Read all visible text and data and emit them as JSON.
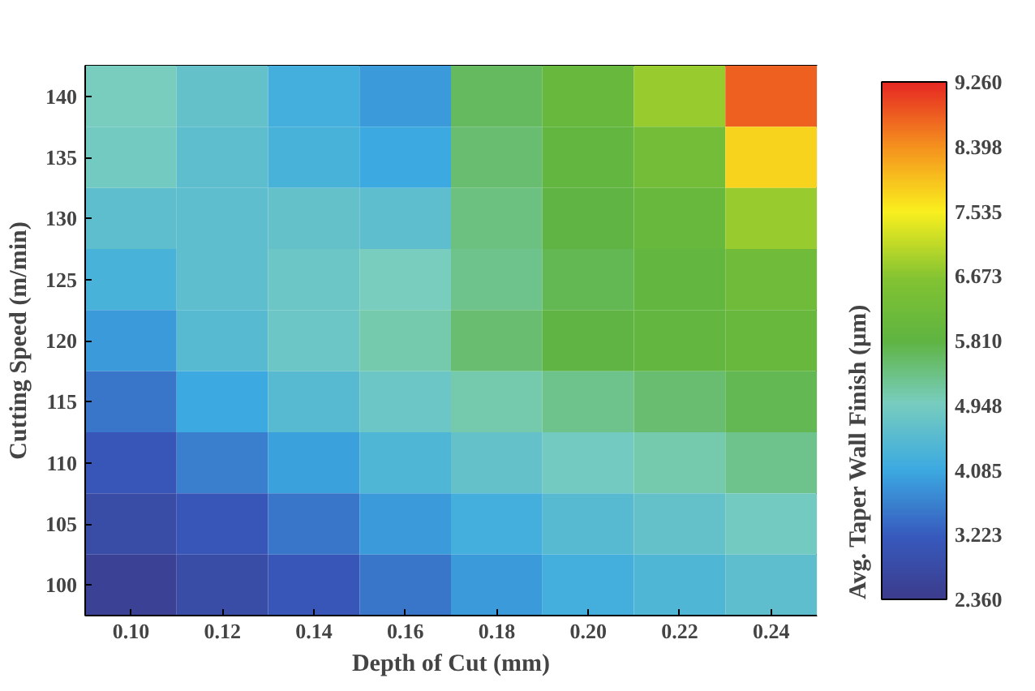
{
  "chart_data": {
    "type": "heatmap",
    "xlabel": "Depth of Cut (mm)",
    "ylabel": "Cutting Speed (m/min)",
    "clabel": "Avg. Taper Wall Finish (µm)",
    "categories": [
      "0.10",
      "0.12",
      "0.14",
      "0.16",
      "0.18",
      "0.20",
      "0.22",
      "0.24"
    ],
    "y_categories": [
      "140",
      "135",
      "130",
      "125",
      "120",
      "115",
      "110",
      "105",
      "100"
    ],
    "cells": [
      [
        5.0,
        4.7,
        4.2,
        3.9,
        5.6,
        6.0,
        6.8,
        8.8
      ],
      [
        4.9,
        4.6,
        4.3,
        4.1,
        5.5,
        5.9,
        6.3,
        7.8
      ],
      [
        4.6,
        4.6,
        4.7,
        4.6,
        5.4,
        5.8,
        6.0,
        6.8
      ],
      [
        4.3,
        4.6,
        4.8,
        5.0,
        5.3,
        5.7,
        5.9,
        6.2
      ],
      [
        3.9,
        4.5,
        4.8,
        5.1,
        5.5,
        5.8,
        5.9,
        6.0
      ],
      [
        3.5,
        4.1,
        4.5,
        4.8,
        5.1,
        5.3,
        5.5,
        5.7
      ],
      [
        3.1,
        3.6,
        4.0,
        4.4,
        4.7,
        4.9,
        5.1,
        5.3
      ],
      [
        2.8,
        3.1,
        3.5,
        3.9,
        4.2,
        4.5,
        4.7,
        4.9
      ],
      [
        2.5,
        2.8,
        3.1,
        3.5,
        3.9,
        4.2,
        4.4,
        4.6
      ]
    ],
    "clim": [
      2.36,
      9.26
    ],
    "cticks": [
      {
        "value": 2.36,
        "label": "2.360"
      },
      {
        "value": 3.223,
        "label": "3.223"
      },
      {
        "value": 4.085,
        "label": "4.085"
      },
      {
        "value": 4.948,
        "label": "4.948"
      },
      {
        "value": 5.81,
        "label": "5.810"
      },
      {
        "value": 6.673,
        "label": "6.673"
      },
      {
        "value": 7.535,
        "label": "7.535"
      },
      {
        "value": 8.398,
        "label": "8.398"
      },
      {
        "value": 9.26,
        "label": "9.260"
      }
    ]
  }
}
